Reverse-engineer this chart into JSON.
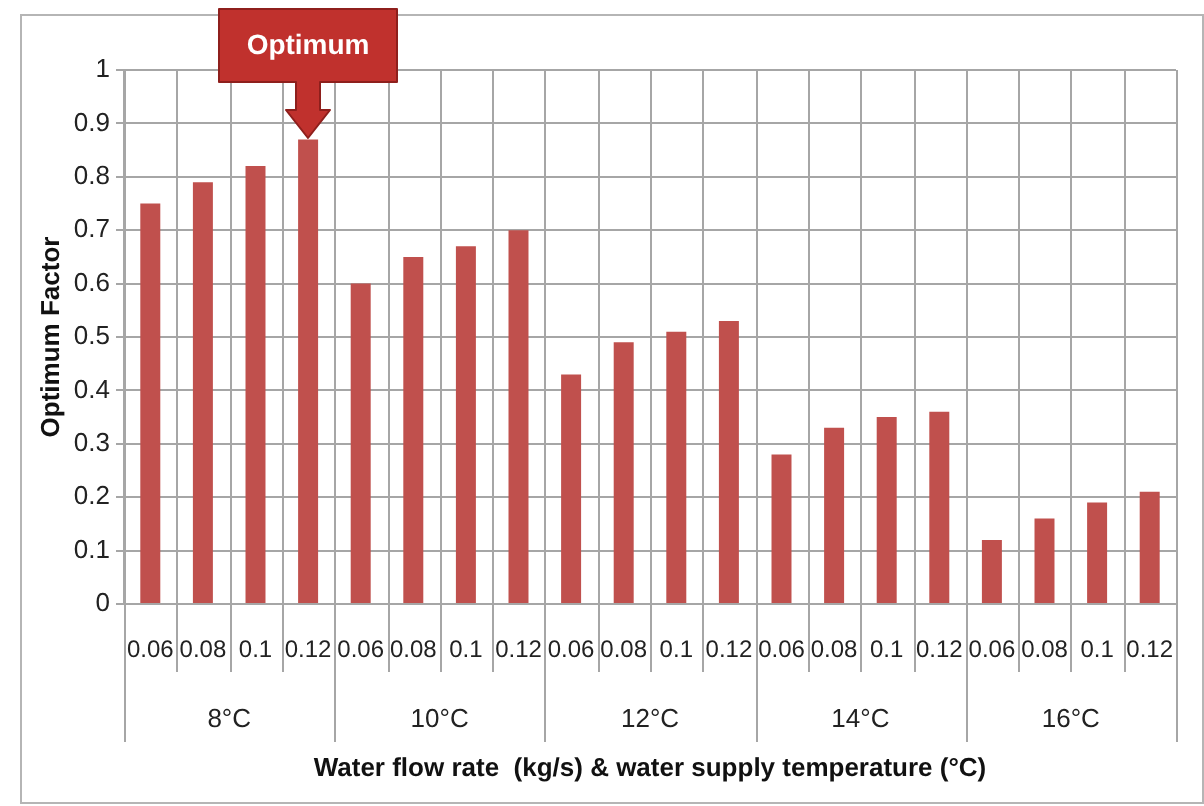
{
  "chart_data": {
    "type": "bar",
    "categories": [
      "8°C",
      "10°C",
      "12°C",
      "14°C",
      "16°C"
    ],
    "series": [
      {
        "name": "0.06",
        "color": "#c0504d",
        "values": [
          0.75,
          0.6,
          0.43,
          0.28,
          0.12
        ]
      },
      {
        "name": "0.08",
        "color": "#c0504d",
        "values": [
          0.79,
          0.65,
          0.49,
          0.33,
          0.16
        ]
      },
      {
        "name": "0.1",
        "color": "#c0504d",
        "values": [
          0.82,
          0.67,
          0.51,
          0.35,
          0.19
        ]
      },
      {
        "name": "0.12",
        "color": "#c0504d",
        "values": [
          0.87,
          0.7,
          0.53,
          0.36,
          0.21
        ]
      }
    ],
    "xlabel": "Water flow rate  (kg/s) & water supply temperature (°C)",
    "ylabel": "Optimum Factor",
    "ylim": [
      0,
      1
    ],
    "yticks": [
      0,
      0.1,
      0.2,
      0.3,
      0.4,
      0.5,
      0.6,
      0.7,
      0.8,
      0.9,
      1
    ],
    "grid": true,
    "annotations": [
      "Optimum"
    ]
  }
}
